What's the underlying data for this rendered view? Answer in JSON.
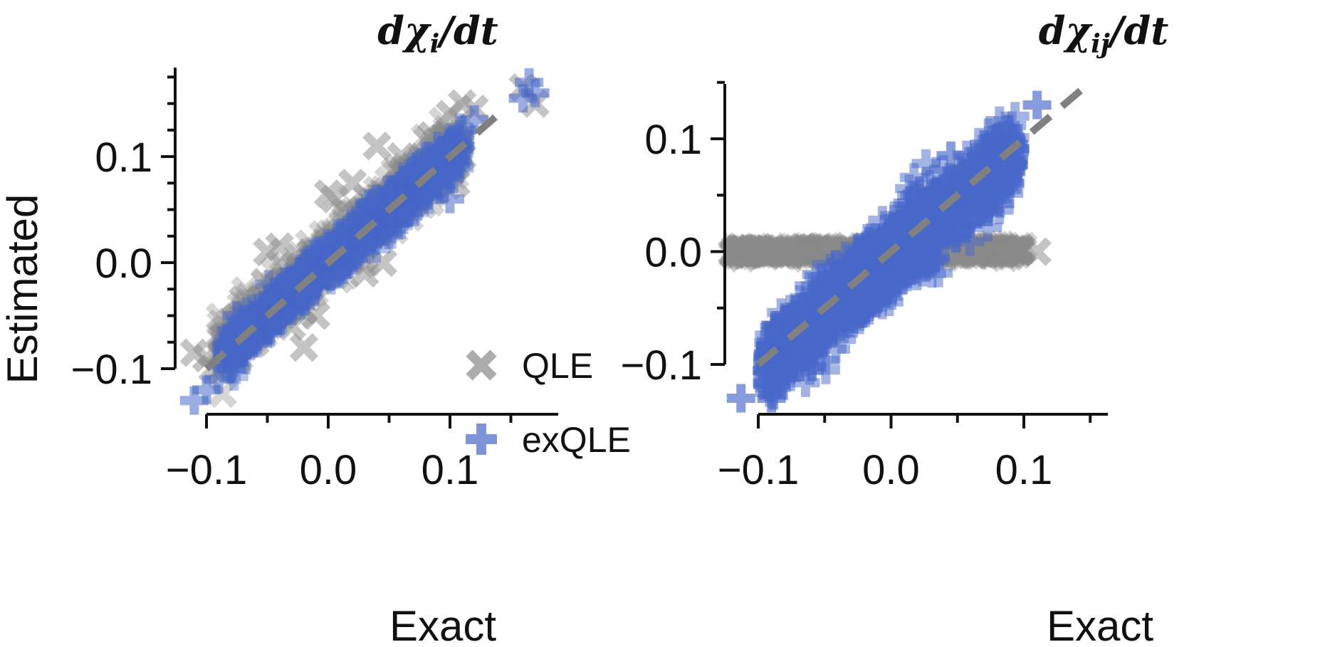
{
  "colors": {
    "qle": "#8a8a8a",
    "exqle": "#4767c9",
    "diag": "#808080",
    "axis": "#111111"
  },
  "chart_data": [
    {
      "type": "scatter",
      "title": "dχ_i/dt",
      "title_main": "dχ",
      "title_sub": "i",
      "title_tail": "/dt",
      "xlabel": "Exact",
      "ylabel": "Estimated",
      "xlim": [
        -0.125,
        0.19
      ],
      "ylim": [
        -0.135,
        0.185
      ],
      "xticks": [
        -0.1,
        -0.05,
        0.0,
        0.05,
        0.1,
        0.15
      ],
      "xtick_labels": [
        "−0.1",
        "",
        "0.0",
        "",
        "0.1",
        ""
      ],
      "yticks": [
        -0.1,
        -0.075,
        -0.05,
        -0.025,
        0.0,
        0.025,
        0.05,
        0.075,
        0.1,
        0.125,
        0.15,
        0.175
      ],
      "ytick_labels": [
        "−0.1",
        "",
        "",
        "",
        "0.0",
        "",
        "",
        "",
        "0.1",
        "",
        "",
        ""
      ],
      "diagonal": [
        -0.1,
        0.145
      ],
      "legend": {
        "placement": "lower-right",
        "entries": [
          "QLE",
          "exQLE"
        ]
      },
      "series": [
        {
          "name": "QLE",
          "marker": "x",
          "opacity": 0.35,
          "cloud": {
            "x_range": [
              -0.08,
              0.1
            ],
            "slope": 1.0,
            "intercept": 0.005,
            "spread": 0.012,
            "n": 650
          },
          "points": [
            [
              -0.11,
              -0.085
            ],
            [
              -0.1,
              -0.09
            ],
            [
              -0.095,
              -0.1
            ],
            [
              -0.08,
              -0.085
            ],
            [
              -0.05,
              0.01
            ],
            [
              -0.04,
              0.015
            ],
            [
              -0.05,
              -0.055
            ],
            [
              -0.03,
              -0.06
            ],
            [
              -0.01,
              -0.05
            ],
            [
              -0.02,
              -0.045
            ],
            [
              0.0,
              0.065
            ],
            [
              0.005,
              0.06
            ],
            [
              0.02,
              0.075
            ],
            [
              0.04,
              0.11
            ],
            [
              0.06,
              0.1
            ],
            [
              0.07,
              0.09
            ],
            [
              0.085,
              0.12
            ],
            [
              0.09,
              0.08
            ],
            [
              0.1,
              0.14
            ],
            [
              0.11,
              0.15
            ],
            [
              0.12,
              0.145
            ],
            [
              0.11,
              0.1
            ],
            [
              0.105,
              0.075
            ],
            [
              0.16,
              0.165
            ],
            [
              0.17,
              0.15
            ],
            [
              -0.07,
              -0.035
            ],
            [
              -0.02,
              -0.08
            ],
            [
              0.03,
              -0.01
            ],
            [
              0.045,
              0.0
            ],
            [
              -0.06,
              -0.075
            ]
          ]
        },
        {
          "name": "exQLE",
          "marker": "+",
          "opacity": 0.4,
          "cloud": {
            "x_range": [
              -0.075,
              0.1
            ],
            "slope": 1.0,
            "intercept": 0.0,
            "spread": 0.009,
            "n": 900
          },
          "points": [
            [
              -0.11,
              -0.13
            ],
            [
              -0.1,
              -0.12
            ],
            [
              -0.09,
              -0.11
            ],
            [
              -0.08,
              -0.1
            ],
            [
              -0.075,
              -0.085
            ],
            [
              -0.07,
              -0.065
            ],
            [
              -0.075,
              -0.05
            ],
            [
              0.08,
              0.1
            ],
            [
              0.09,
              0.11
            ],
            [
              0.11,
              0.125
            ],
            [
              0.12,
              0.135
            ],
            [
              0.165,
              0.17
            ],
            [
              0.17,
              0.16
            ],
            [
              0.16,
              0.155
            ],
            [
              0.1,
              0.06
            ],
            [
              0.095,
              0.07
            ]
          ]
        }
      ]
    },
    {
      "type": "scatter",
      "title": "dχ_ij/dt",
      "title_main": "dχ",
      "title_sub": "ij",
      "title_tail": "/dt",
      "xlabel": "Exact",
      "ylabel": "",
      "xlim": [
        -0.125,
        0.165
      ],
      "ylim": [
        -0.145,
        0.16
      ],
      "xticks": [
        -0.1,
        -0.05,
        0.0,
        0.05,
        0.1,
        0.15
      ],
      "xtick_labels": [
        "−0.1",
        "",
        "0.0",
        "",
        "0.1",
        ""
      ],
      "yticks": [
        -0.1,
        -0.05,
        0.0,
        0.05,
        0.1,
        0.15
      ],
      "ytick_labels": [
        "−0.1",
        "",
        "0.0",
        "",
        "0.1",
        ""
      ],
      "diagonal": [
        -0.1,
        0.148
      ],
      "series": [
        {
          "name": "QLE",
          "marker": "x",
          "opacity": 0.35,
          "cloud": {
            "x_range": [
              -0.11,
              0.09
            ],
            "slope": 0.0,
            "intercept": 0.0,
            "spread": 0.0025,
            "n": 500
          },
          "points": [
            [
              -0.113,
              0.0
            ],
            [
              0.11,
              0.0
            ],
            [
              -0.1,
              0.002
            ],
            [
              0.085,
              -0.002
            ]
          ]
        },
        {
          "name": "exQLE",
          "marker": "+",
          "opacity": 0.5,
          "cloud": {
            "x_range": [
              -0.085,
              0.085
            ],
            "slope": 1.0,
            "intercept": -0.005,
            "spread": 0.015,
            "n": 1600
          },
          "points": [
            [
              -0.113,
              -0.13
            ],
            [
              -0.09,
              -0.13
            ],
            [
              0.11,
              0.13
            ],
            [
              0.08,
              0.1
            ],
            [
              -0.08,
              -0.06
            ],
            [
              -0.09,
              -0.09
            ],
            [
              0.045,
              0.085
            ],
            [
              0.07,
              0.095
            ]
          ]
        }
      ]
    }
  ]
}
